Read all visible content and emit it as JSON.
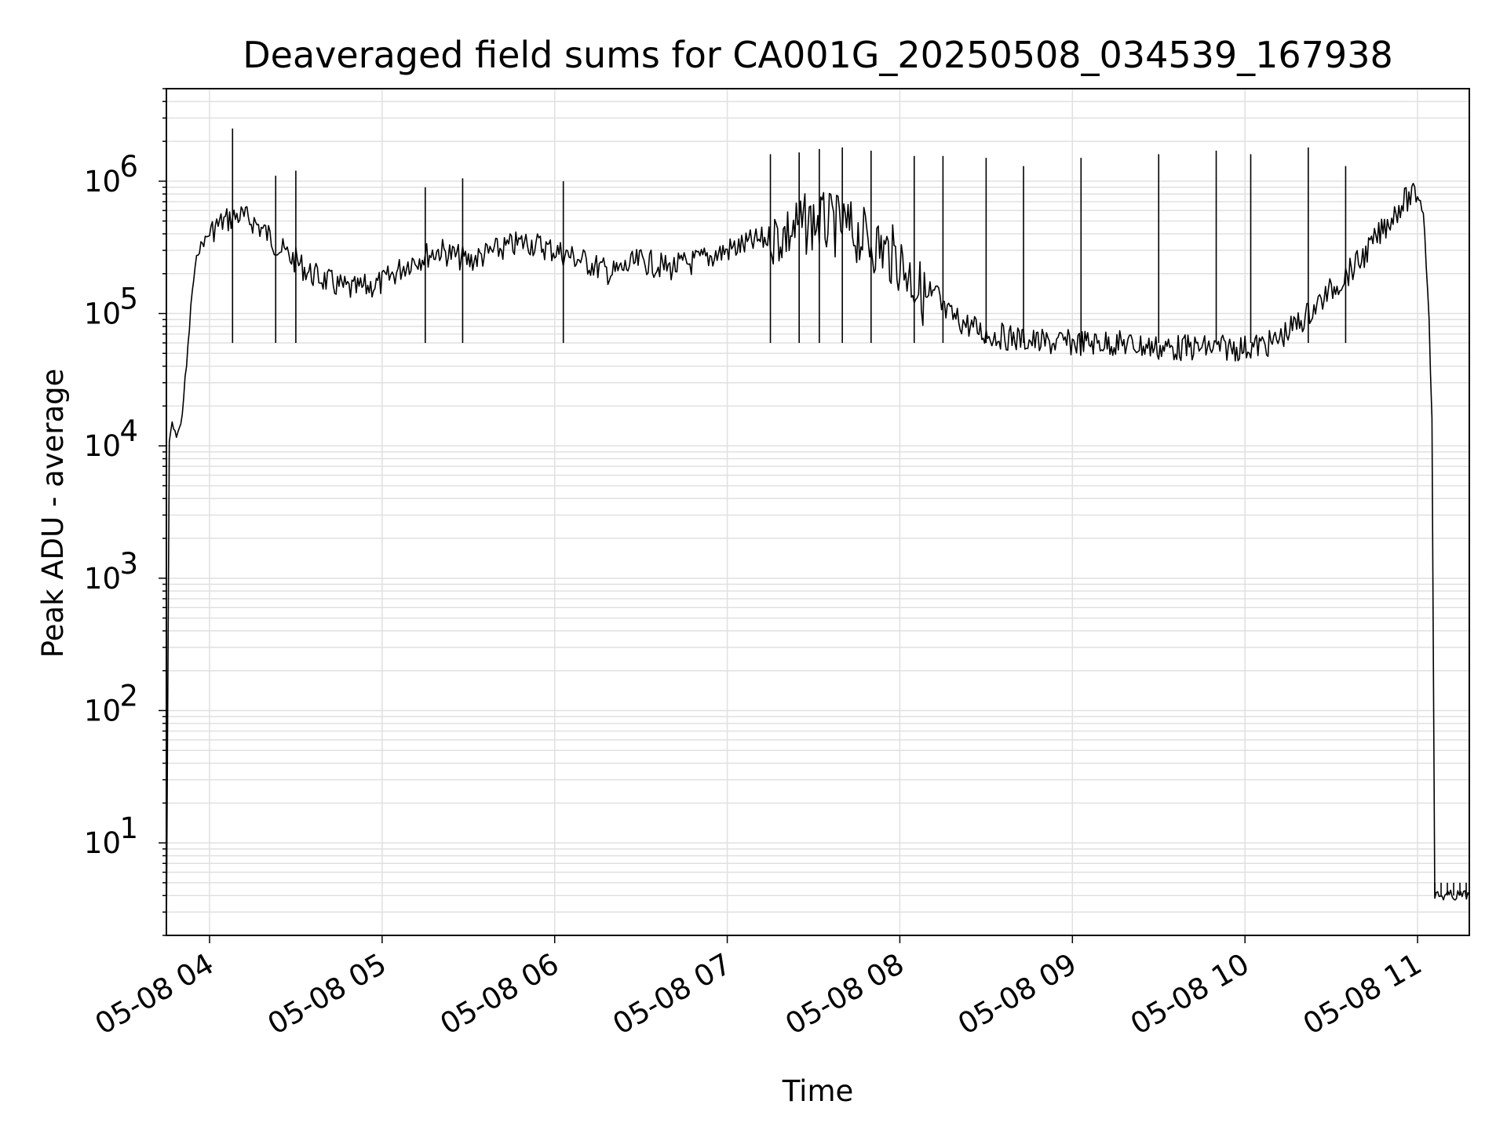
{
  "chart_data": {
    "type": "line",
    "title": "Deaveraged field sums for CA001G_20250508_034539_167938",
    "xlabel": "Time",
    "ylabel": "Peak ADU - average",
    "yscale": "log",
    "grid": "major and minor, both axes",
    "line_color": "#000000",
    "grid_color": "#e0e0e0",
    "xlim": [
      "2025-05-08 03:45",
      "2025-05-08 11:18"
    ],
    "ylim": [
      2,
      5000000
    ],
    "x_ticks": [
      "05-08 04",
      "05-08 05",
      "05-08 06",
      "05-08 07",
      "05-08 08",
      "05-08 09",
      "05-08 10",
      "05-08 11"
    ],
    "y_ticks": [
      {
        "base": "10",
        "exp": "1"
      },
      {
        "base": "10",
        "exp": "2"
      },
      {
        "base": "10",
        "exp": "3"
      },
      {
        "base": "10",
        "exp": "4"
      },
      {
        "base": "10",
        "exp": "5"
      },
      {
        "base": "10",
        "exp": "6"
      }
    ],
    "series": [
      {
        "x": [
          "2025-05-08 03:45",
          "2025-05-08 03:46",
          "2025-05-08 03:47",
          "2025-05-08 03:48",
          "2025-05-08 03:50",
          "2025-05-08 03:52",
          "2025-05-08 03:54",
          "2025-05-08 03:56",
          "2025-05-08 03:58",
          "2025-05-08 04:00",
          "2025-05-08 04:02",
          "2025-05-08 04:05",
          "2025-05-08 04:10",
          "2025-05-08 04:15",
          "2025-05-08 04:20",
          "2025-05-08 04:25",
          "2025-05-08 04:30",
          "2025-05-08 04:35",
          "2025-05-08 04:40",
          "2025-05-08 04:45",
          "2025-05-08 04:50",
          "2025-05-08 05:00",
          "2025-05-08 05:10",
          "2025-05-08 05:20",
          "2025-05-08 05:30",
          "2025-05-08 05:40",
          "2025-05-08 05:50",
          "2025-05-08 06:00",
          "2025-05-08 06:10",
          "2025-05-08 06:20",
          "2025-05-08 06:30",
          "2025-05-08 06:40",
          "2025-05-08 06:50",
          "2025-05-08 07:00",
          "2025-05-08 07:10",
          "2025-05-08 07:20",
          "2025-05-08 07:30",
          "2025-05-08 07:40",
          "2025-05-08 07:50",
          "2025-05-08 08:00",
          "2025-05-08 08:10",
          "2025-05-08 08:20",
          "2025-05-08 08:30",
          "2025-05-08 08:40",
          "2025-05-08 08:50",
          "2025-05-08 09:00",
          "2025-05-08 09:15",
          "2025-05-08 09:30",
          "2025-05-08 09:45",
          "2025-05-08 10:00",
          "2025-05-08 10:10",
          "2025-05-08 10:20",
          "2025-05-08 10:30",
          "2025-05-08 10:40",
          "2025-05-08 10:45",
          "2025-05-08 10:50",
          "2025-05-08 10:55",
          "2025-05-08 11:00",
          "2025-05-08 11:02",
          "2025-05-08 11:04",
          "2025-05-08 11:05",
          "2025-05-08 11:06",
          "2025-05-08 11:18"
        ],
        "y": [
          2,
          10000,
          15000,
          12000,
          14000,
          40000,
          150000,
          300000,
          350000,
          400000,
          450000,
          500000,
          550000,
          500000,
          400000,
          300000,
          250000,
          200000,
          180000,
          160000,
          150000,
          170000,
          250000,
          300000,
          250000,
          300000,
          350000,
          300000,
          250000,
          200000,
          250000,
          220000,
          250000,
          300000,
          350000,
          400000,
          500000,
          450000,
          350000,
          250000,
          120000,
          90000,
          70000,
          65000,
          60000,
          60000,
          60000,
          55000,
          55000,
          55000,
          60000,
          90000,
          150000,
          250000,
          350000,
          500000,
          700000,
          800000,
          600000,
          100000,
          15000,
          4,
          4
        ],
        "spikes": [
          {
            "x": "2025-05-08 04:08",
            "y": 2500000
          },
          {
            "x": "2025-05-08 04:23",
            "y": 1100000
          },
          {
            "x": "2025-05-08 04:30",
            "y": 1200000
          },
          {
            "x": "2025-05-08 05:15",
            "y": 900000
          },
          {
            "x": "2025-05-08 05:28",
            "y": 1050000
          },
          {
            "x": "2025-05-08 06:03",
            "y": 1000000
          },
          {
            "x": "2025-05-08 07:15",
            "y": 1600000
          },
          {
            "x": "2025-05-08 07:25",
            "y": 1650000
          },
          {
            "x": "2025-05-08 07:32",
            "y": 1750000
          },
          {
            "x": "2025-05-08 07:40",
            "y": 1800000
          },
          {
            "x": "2025-05-08 07:50",
            "y": 1700000
          },
          {
            "x": "2025-05-08 08:05",
            "y": 1550000
          },
          {
            "x": "2025-05-08 08:15",
            "y": 1550000
          },
          {
            "x": "2025-05-08 08:30",
            "y": 1500000
          },
          {
            "x": "2025-05-08 08:43",
            "y": 1300000
          },
          {
            "x": "2025-05-08 09:03",
            "y": 1500000
          },
          {
            "x": "2025-05-08 09:30",
            "y": 1600000
          },
          {
            "x": "2025-05-08 09:50",
            "y": 1700000
          },
          {
            "x": "2025-05-08 10:02",
            "y": 1600000
          },
          {
            "x": "2025-05-08 10:22",
            "y": 1800000
          },
          {
            "x": "2025-05-08 10:35",
            "y": 1300000
          }
        ]
      }
    ]
  }
}
